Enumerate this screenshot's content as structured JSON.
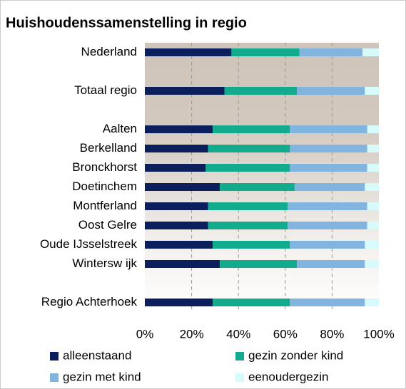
{
  "chart_data": {
    "type": "stacked_bar_horizontal",
    "title": "Huishoudenssamenstelling in regio",
    "categories": [
      "Nederland",
      null,
      "Totaal regio",
      null,
      "Aalten",
      "Berkelland",
      "Bronckhorst",
      "Doetinchem",
      "Montferland",
      "Oost Gelre",
      "Oude IJsselstreek",
      "Wintersw ijk",
      null,
      "Regio Achterhoek"
    ],
    "series": [
      {
        "name": "alleenstaand",
        "color": "#0a1f5c",
        "values": [
          37,
          null,
          34,
          null,
          29,
          27,
          26,
          32,
          27,
          27,
          29,
          32,
          null,
          29
        ]
      },
      {
        "name": "gezin zonder kind",
        "color": "#13ab8d",
        "values": [
          29,
          null,
          31,
          null,
          33,
          35,
          36,
          32,
          34,
          34,
          33,
          33,
          null,
          33
        ]
      },
      {
        "name": "gezin met kind",
        "color": "#82b4e0",
        "values": [
          27,
          null,
          29,
          null,
          33,
          33,
          33,
          30,
          34,
          34,
          32,
          29,
          null,
          32
        ]
      },
      {
        "name": "eenoudergezin",
        "color": "#d7fbfb",
        "values": [
          7,
          null,
          6,
          null,
          5,
          5,
          5,
          6,
          5,
          5,
          6,
          6,
          null,
          6
        ]
      }
    ],
    "xlim": [
      0,
      100
    ],
    "xticks": [
      {
        "value": 0,
        "label": "0%"
      },
      {
        "value": 20,
        "label": "20%"
      },
      {
        "value": 40,
        "label": "40%"
      },
      {
        "value": 60,
        "label": "60%"
      },
      {
        "value": 80,
        "label": "80%"
      },
      {
        "value": 100,
        "label": "100%"
      }
    ],
    "grid": true
  }
}
